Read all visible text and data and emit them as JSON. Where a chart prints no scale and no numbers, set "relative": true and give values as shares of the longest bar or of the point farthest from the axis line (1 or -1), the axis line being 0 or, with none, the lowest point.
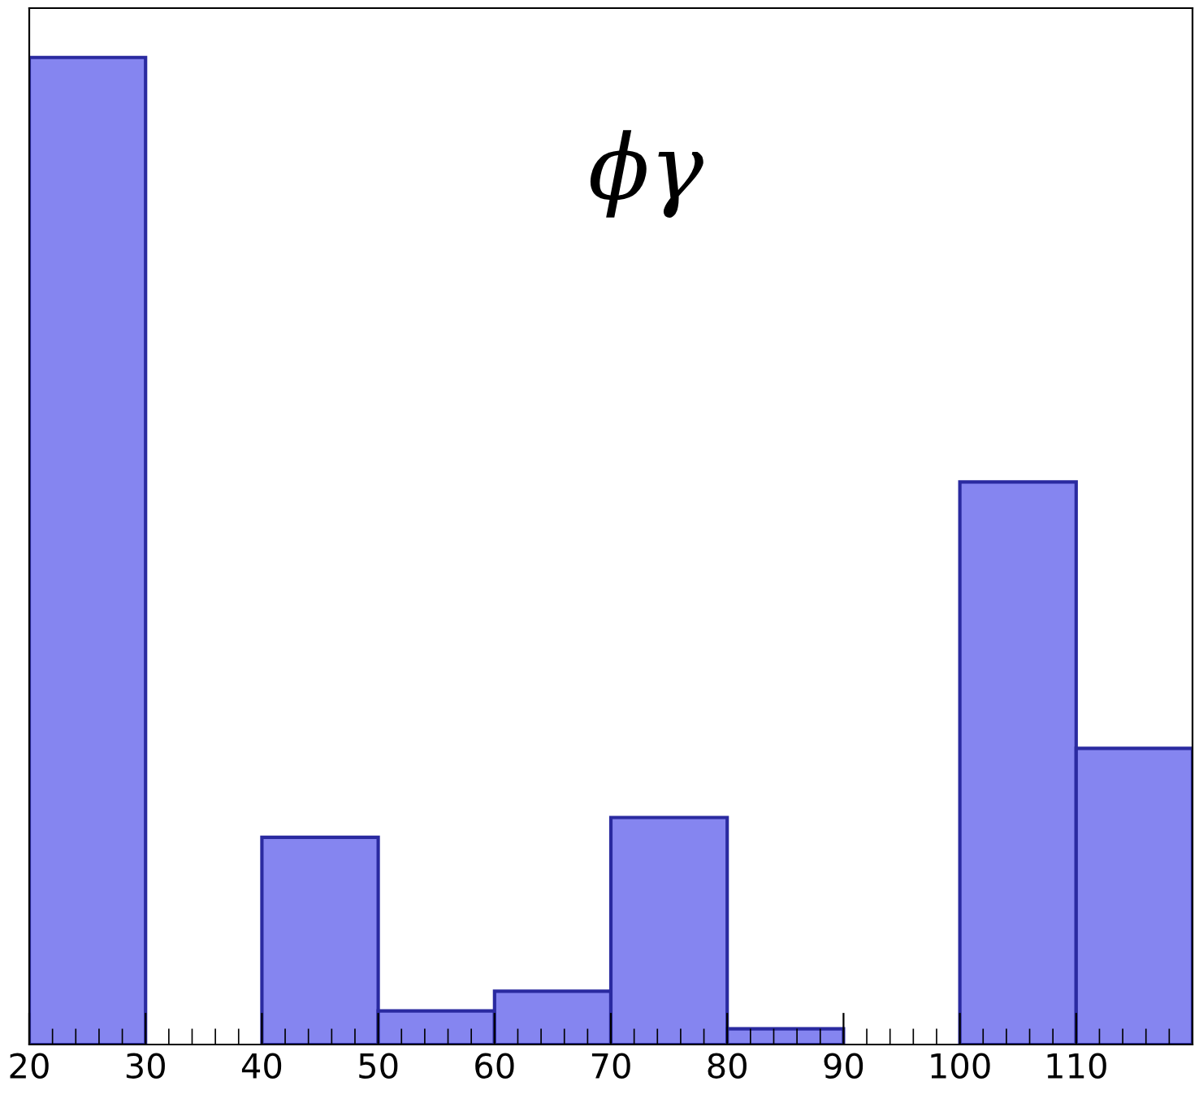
{
  "chart_data": {
    "type": "bar",
    "relative": true,
    "x": [
      25,
      35,
      45,
      55,
      65,
      75,
      85,
      95,
      105,
      115
    ],
    "values": [
      1,
      0,
      0.21,
      0.034,
      0.054,
      0.23,
      0.016,
      0,
      0.57,
      0.3
    ],
    "color": "#8585f0",
    "xlim": [
      20,
      120
    ],
    "xticks": [
      20,
      30,
      40,
      50,
      60,
      70,
      80,
      90,
      100,
      110
    ],
    "annotations": [
      "ϕγ"
    ],
    "grid": false
  }
}
